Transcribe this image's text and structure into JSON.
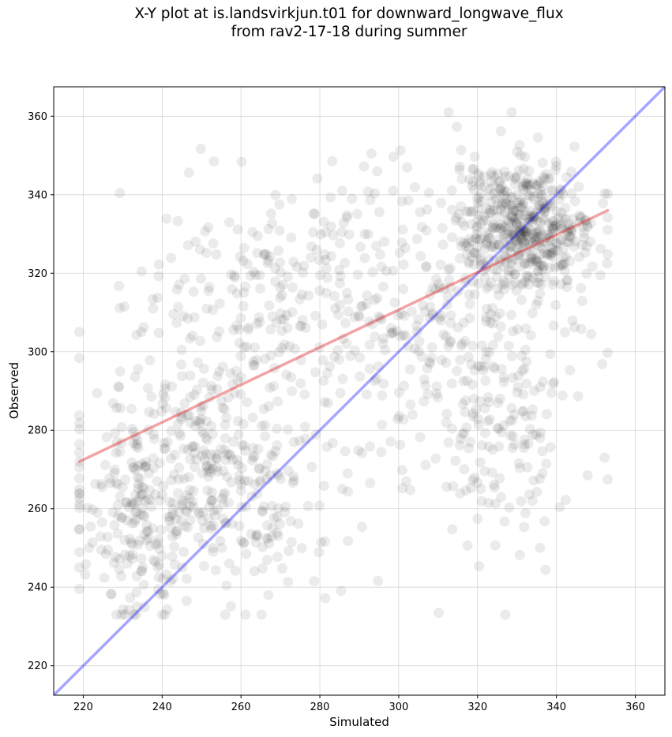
{
  "chart_data": {
    "type": "scatter",
    "title_lines": [
      "X-Y plot at is.landsvirkjun.t01 for downward_longwave_flux",
      "from rav2-17-18 during summer"
    ],
    "xlabel": "Simulated",
    "ylabel": "Observed",
    "xlim": [
      212.5,
      367.5
    ],
    "ylim": [
      212.5,
      367.5
    ],
    "xticks": [
      220,
      240,
      260,
      280,
      300,
      320,
      340,
      360
    ],
    "yticks": [
      220,
      240,
      260,
      280,
      300,
      320,
      340,
      360
    ],
    "grid": true,
    "point_color": "#000000",
    "point_alpha": 0.08,
    "identity_line": {
      "color": "#0000ff",
      "from": [
        212.5,
        212.5
      ],
      "to": [
        367.5,
        367.5
      ]
    },
    "fit_line": {
      "color": "#e41a1c",
      "from": [
        219,
        272
      ],
      "to": [
        353,
        336
      ]
    },
    "point_clusters": [
      {
        "cx": 252,
        "cy": 270,
        "sx": 16,
        "sy": 18,
        "n": 420
      },
      {
        "cx": 332,
        "cy": 332,
        "sx": 9,
        "sy": 8,
        "n": 480
      },
      {
        "cx": 278,
        "cy": 315,
        "sx": 22,
        "sy": 15,
        "n": 300
      },
      {
        "cx": 318,
        "cy": 300,
        "sx": 16,
        "sy": 22,
        "n": 220
      },
      {
        "cx": 330,
        "cy": 278,
        "sx": 9,
        "sy": 13,
        "n": 90
      },
      {
        "cx": 232,
        "cy": 254,
        "sx": 7,
        "sy": 11,
        "n": 110
      }
    ]
  }
}
